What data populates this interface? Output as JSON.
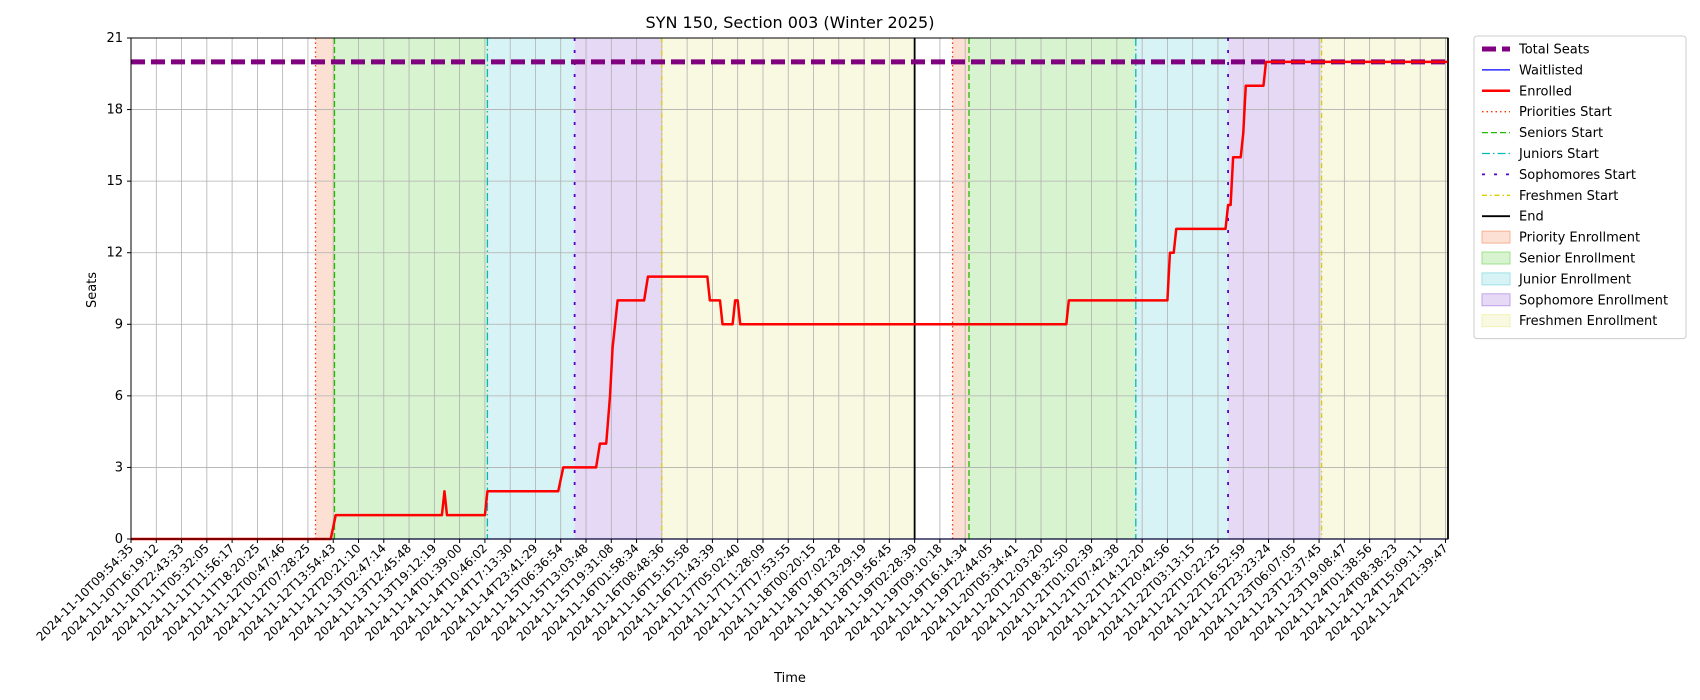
{
  "chart_data": {
    "type": "line",
    "title": "SYN 150, Section 003 (Winter 2025)",
    "xlabel": "Time",
    "ylabel": "Seats",
    "ylim": [
      0,
      21
    ],
    "yticks": [
      0,
      3,
      6,
      9,
      12,
      15,
      18,
      21
    ],
    "grid": true,
    "legend_position": "outside right, top",
    "xtick_labels": [
      "2024-11-10T09:54:35",
      "2024-11-10T16:19:12",
      "2024-11-10T22:43:33",
      "2024-11-11T05:32:05",
      "2024-11-11T11:56:17",
      "2024-11-11T18:20:25",
      "2024-11-12T00:47:46",
      "2024-11-12T07:28:25",
      "2024-11-12T13:54:43",
      "2024-11-12T20:21:10",
      "2024-11-13T02:47:14",
      "2024-11-13T12:45:48",
      "2024-11-13T19:12:19",
      "2024-11-14T01:39:00",
      "2024-11-14T10:46:02",
      "2024-11-14T17:13:30",
      "2024-11-14T23:41:29",
      "2024-11-15T06:36:54",
      "2024-11-15T13:03:48",
      "2024-11-15T19:31:08",
      "2024-11-16T01:58:34",
      "2024-11-16T08:48:36",
      "2024-11-16T15:15:58",
      "2024-11-16T21:43:39",
      "2024-11-17T05:02:40",
      "2024-11-17T11:28:09",
      "2024-11-17T17:53:55",
      "2024-11-18T00:20:15",
      "2024-11-18T07:02:28",
      "2024-11-18T13:29:19",
      "2024-11-18T19:56:45",
      "2024-11-19T02:28:39",
      "2024-11-19T09:10:18",
      "2024-11-19T16:14:34",
      "2024-11-19T22:44:05",
      "2024-11-20T05:34:41",
      "2024-11-20T12:03:20",
      "2024-11-20T18:32:50",
      "2024-11-21T01:02:39",
      "2024-11-21T07:42:38",
      "2024-11-21T14:12:20",
      "2024-11-21T20:42:56",
      "2024-11-22T03:13:15",
      "2024-11-22T10:22:25",
      "2024-11-22T16:52:59",
      "2024-11-22T23:23:24",
      "2024-11-23T06:07:05",
      "2024-11-23T12:37:45",
      "2024-11-23T19:08:47",
      "2024-11-24T01:38:56",
      "2024-11-24T08:38:23",
      "2024-11-24T15:09:11",
      "2024-11-24T21:39:47"
    ],
    "x_range": [
      0,
      52.1
    ],
    "total_seats": 20,
    "enrolled": [
      [
        0,
        0
      ],
      [
        7.9,
        0
      ],
      [
        8.1,
        1
      ],
      [
        12.3,
        1
      ],
      [
        12.4,
        2
      ],
      [
        12.5,
        1
      ],
      [
        14.0,
        1
      ],
      [
        14.1,
        2
      ],
      [
        16.9,
        2
      ],
      [
        17.1,
        3
      ],
      [
        18.4,
        3
      ],
      [
        18.55,
        4
      ],
      [
        18.8,
        4
      ],
      [
        18.95,
        6
      ],
      [
        19.05,
        8
      ],
      [
        19.25,
        10
      ],
      [
        20.3,
        10
      ],
      [
        20.45,
        11
      ],
      [
        22.8,
        11
      ],
      [
        22.9,
        10
      ],
      [
        23.3,
        10
      ],
      [
        23.4,
        9
      ],
      [
        23.8,
        9
      ],
      [
        23.9,
        10
      ],
      [
        24.0,
        10
      ],
      [
        24.1,
        9
      ],
      [
        37.0,
        9
      ],
      [
        37.1,
        10
      ],
      [
        41.0,
        10
      ],
      [
        41.1,
        12
      ],
      [
        41.25,
        12
      ],
      [
        41.35,
        13
      ],
      [
        43.3,
        13
      ],
      [
        43.4,
        14
      ],
      [
        43.5,
        14
      ],
      [
        43.6,
        16
      ],
      [
        43.9,
        16
      ],
      [
        44.0,
        17
      ],
      [
        44.1,
        19
      ],
      [
        44.8,
        19
      ],
      [
        44.9,
        20
      ],
      [
        52.1,
        20
      ]
    ],
    "waitlisted": [
      [
        0,
        0
      ],
      [
        52.1,
        0
      ]
    ],
    "phases": [
      {
        "name": "Priority Enrollment",
        "color": "#f4a582",
        "start": 7.3,
        "end": 8.05
      },
      {
        "name": "Senior Enrollment",
        "color": "#8fdc75",
        "start": 8.05,
        "end": 14.1
      },
      {
        "name": "Junior Enrollment",
        "color": "#8edde4",
        "start": 14.1,
        "end": 17.55
      },
      {
        "name": "Sophomore Enrollment",
        "color": "#b792e6",
        "start": 17.55,
        "end": 21.0
      },
      {
        "name": "Freshmen Enrollment",
        "color": "#eeeeaa",
        "start": 21.0,
        "end": 31.0
      },
      {
        "name": "Priority Enrollment",
        "color": "#f4a582",
        "start": 32.5,
        "end": 33.15
      },
      {
        "name": "Senior Enrollment",
        "color": "#8fdc75",
        "start": 33.15,
        "end": 39.75
      },
      {
        "name": "Junior Enrollment",
        "color": "#8edde4",
        "start": 39.75,
        "end": 43.4
      },
      {
        "name": "Sophomore Enrollment",
        "color": "#b792e6",
        "start": 43.4,
        "end": 47.1
      },
      {
        "name": "Freshmen Enrollment",
        "color": "#eeeeaa",
        "start": 47.1,
        "end": 52.1
      }
    ],
    "markers": [
      {
        "kind": "priorities",
        "x": 7.3
      },
      {
        "kind": "seniors",
        "x": 8.05
      },
      {
        "kind": "juniors",
        "x": 14.1
      },
      {
        "kind": "sophomores",
        "x": 17.55
      },
      {
        "kind": "freshmen",
        "x": 21.0
      },
      {
        "kind": "end",
        "x": 31.0
      },
      {
        "kind": "priorities",
        "x": 32.5
      },
      {
        "kind": "seniors",
        "x": 33.15
      },
      {
        "kind": "juniors",
        "x": 39.75
      },
      {
        "kind": "sophomores",
        "x": 43.4
      },
      {
        "kind": "freshmen",
        "x": 47.1
      },
      {
        "kind": "end",
        "x": 52.1
      }
    ],
    "legend": [
      {
        "label": "Total Seats",
        "type": "line",
        "color": "#800080",
        "dash": "14,6",
        "width": 5
      },
      {
        "label": "Waitlisted",
        "type": "line",
        "color": "#0000ff",
        "dash": "",
        "width": 1.3
      },
      {
        "label": "Enrolled",
        "type": "line",
        "color": "#ff0000",
        "dash": "",
        "width": 2.5
      },
      {
        "label": "Priorities Start",
        "type": "line",
        "color": "#ff3300",
        "dash": "1.5,3",
        "width": 1.3
      },
      {
        "label": "Seniors Start",
        "type": "line",
        "color": "#22bb00",
        "dash": "6,3",
        "width": 1.3
      },
      {
        "label": "Juniors Start",
        "type": "line",
        "color": "#00bbbb",
        "dash": "8,3,1.5,3",
        "width": 1.3
      },
      {
        "label": "Sophomores Start",
        "type": "line",
        "color": "#5500cc",
        "dash": "3,9",
        "width": 1.8
      },
      {
        "label": "Freshmen Start",
        "type": "line",
        "color": "#ddcc00",
        "dash": "5,3,1.5,3",
        "width": 1.3
      },
      {
        "label": "End",
        "type": "line",
        "color": "#000000",
        "dash": "",
        "width": 1.8
      },
      {
        "label": "Priority Enrollment",
        "type": "patch",
        "color": "#f4a582"
      },
      {
        "label": "Senior Enrollment",
        "type": "patch",
        "color": "#8fdc75"
      },
      {
        "label": "Junior Enrollment",
        "type": "patch",
        "color": "#8edde4"
      },
      {
        "label": "Sophomore Enrollment",
        "type": "patch",
        "color": "#b792e6"
      },
      {
        "label": "Freshmen Enrollment",
        "type": "patch",
        "color": "#eeeeaa"
      }
    ],
    "marker_styles": {
      "priorities": {
        "color": "#ff3300",
        "dash": "1.5,3",
        "width": 1.3
      },
      "seniors": {
        "color": "#22bb00",
        "dash": "6,3",
        "width": 1.3
      },
      "juniors": {
        "color": "#00bbbb",
        "dash": "8,3,1.5,3",
        "width": 1.3
      },
      "sophomores": {
        "color": "#5500cc",
        "dash": "3,9",
        "width": 1.8
      },
      "freshmen": {
        "color": "#ddcc00",
        "dash": "5,3,1.5,3",
        "width": 1.3
      },
      "end": {
        "color": "#000000",
        "dash": "",
        "width": 1.8
      }
    }
  }
}
